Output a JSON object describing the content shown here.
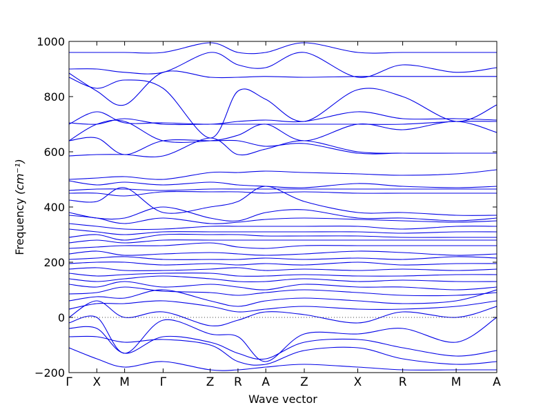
{
  "chart_data": {
    "type": "line",
    "title": "",
    "xlabel": "Wave vector",
    "ylabel": "Frequency",
    "ylabel_unit": "(cm⁻¹)",
    "ylim": [
      -200,
      1000
    ],
    "yticks": [
      -200,
      0,
      200,
      400,
      600,
      800,
      1000
    ],
    "ytick_labels": [
      "−200",
      "0",
      "200",
      "400",
      "600",
      "800",
      "1000"
    ],
    "zero_line": true,
    "grid": false,
    "legend": "none",
    "line_color": "#0000e6",
    "high_symmetry_points": [
      {
        "label": "Γ",
        "pos": 0.0
      },
      {
        "label": "X",
        "pos": 0.65
      },
      {
        "label": "M",
        "pos": 1.3
      },
      {
        "label": "Γ",
        "pos": 2.2
      },
      {
        "label": "Z",
        "pos": 3.3
      },
      {
        "label": "R",
        "pos": 3.95
      },
      {
        "label": "A",
        "pos": 4.6
      },
      {
        "label": "Z",
        "pos": 5.5
      },
      {
        "label": "X",
        "pos": 6.75
      },
      {
        "label": "R",
        "pos": 7.8
      },
      {
        "label": "M",
        "pos": 9.05
      },
      {
        "label": "A",
        "pos": 10.0
      }
    ],
    "x": [
      0,
      0.65,
      1.3,
      2.2,
      3.3,
      3.95,
      4.6,
      5.5,
      6.75,
      7.8,
      9.05,
      10.0
    ],
    "series": [
      {
        "values": [
          960,
          960,
          960,
          960,
          995,
          960,
          960,
          995,
          960,
          960,
          960,
          960
        ]
      },
      {
        "values": [
          900,
          900,
          888,
          888,
          960,
          915,
          905,
          960,
          870,
          915,
          888,
          905
        ]
      },
      {
        "values": [
          885,
          820,
          770,
          888,
          870,
          870,
          873,
          870,
          873,
          873,
          873,
          873
        ]
      },
      {
        "values": [
          870,
          830,
          860,
          830,
          650,
          820,
          790,
          710,
          825,
          800,
          710,
          770
        ]
      },
      {
        "values": [
          700,
          745,
          705,
          705,
          700,
          710,
          715,
          710,
          745,
          720,
          720,
          715
        ]
      },
      {
        "values": [
          705,
          700,
          720,
          700,
          700,
          700,
          700,
          700,
          700,
          700,
          710,
          710
        ]
      },
      {
        "values": [
          640,
          700,
          710,
          640,
          640,
          660,
          700,
          640,
          700,
          680,
          710,
          670
        ]
      },
      {
        "values": [
          640,
          650,
          590,
          640,
          640,
          640,
          620,
          630,
          595,
          595,
          595,
          595
        ]
      },
      {
        "values": [
          585,
          590,
          590,
          585,
          650,
          590,
          610,
          640,
          600,
          595,
          595,
          595
        ]
      },
      {
        "values": [
          500,
          505,
          510,
          500,
          525,
          525,
          530,
          525,
          520,
          515,
          520,
          535
        ]
      },
      {
        "values": [
          495,
          480,
          490,
          480,
          490,
          480,
          475,
          470,
          485,
          475,
          470,
          475
        ]
      },
      {
        "values": [
          460,
          465,
          465,
          460,
          465,
          465,
          465,
          465,
          465,
          465,
          465,
          465
        ]
      },
      {
        "values": [
          450,
          450,
          440,
          455,
          455,
          455,
          450,
          455,
          450,
          450,
          450,
          450
        ]
      },
      {
        "values": [
          425,
          420,
          470,
          380,
          400,
          420,
          475,
          420,
          380,
          380,
          370,
          370
        ]
      },
      {
        "values": [
          380,
          360,
          360,
          400,
          360,
          350,
          380,
          390,
          360,
          360,
          350,
          360
        ]
      },
      {
        "values": [
          370,
          360,
          340,
          360,
          340,
          345,
          355,
          360,
          355,
          350,
          345,
          350
        ]
      },
      {
        "values": [
          340,
          330,
          320,
          320,
          330,
          330,
          330,
          330,
          330,
          320,
          330,
          330
        ]
      },
      {
        "values": [
          320,
          310,
          300,
          310,
          310,
          310,
          310,
          310,
          310,
          305,
          310,
          310
        ]
      },
      {
        "values": [
          290,
          300,
          280,
          300,
          300,
          300,
          295,
          295,
          295,
          290,
          290,
          290
        ]
      },
      {
        "values": [
          270,
          280,
          270,
          280,
          280,
          280,
          280,
          280,
          280,
          280,
          280,
          280
        ]
      },
      {
        "values": [
          250,
          255,
          260,
          260,
          270,
          255,
          250,
          260,
          260,
          260,
          260,
          260
        ]
      },
      {
        "values": [
          230,
          240,
          225,
          230,
          235,
          230,
          225,
          230,
          240,
          235,
          225,
          230
        ]
      },
      {
        "values": [
          210,
          215,
          220,
          210,
          210,
          210,
          215,
          210,
          215,
          210,
          220,
          215
        ]
      },
      {
        "values": [
          195,
          200,
          200,
          190,
          195,
          190,
          195,
          190,
          200,
          190,
          195,
          195
        ]
      },
      {
        "values": [
          175,
          180,
          170,
          170,
          175,
          180,
          170,
          175,
          170,
          175,
          170,
          175
        ]
      },
      {
        "values": [
          160,
          150,
          155,
          160,
          160,
          150,
          150,
          155,
          150,
          150,
          155,
          155
        ]
      },
      {
        "values": [
          140,
          130,
          140,
          150,
          140,
          130,
          130,
          140,
          130,
          135,
          130,
          130
        ]
      },
      {
        "values": [
          120,
          110,
          130,
          110,
          120,
          110,
          100,
          120,
          110,
          110,
          100,
          110
        ]
      },
      {
        "values": [
          85,
          90,
          110,
          95,
          90,
          80,
          90,
          100,
          90,
          80,
          80,
          90
        ]
      },
      {
        "values": [
          60,
          75,
          70,
          100,
          60,
          40,
          60,
          70,
          60,
          50,
          60,
          100
        ]
      },
      {
        "values": [
          30,
          50,
          50,
          60,
          40,
          20,
          30,
          40,
          30,
          30,
          40,
          60
        ]
      },
      {
        "values": [
          0,
          60,
          0,
          20,
          -30,
          -10,
          20,
          10,
          -20,
          20,
          0,
          40
        ]
      },
      {
        "values": [
          -20,
          0,
          -130,
          -10,
          -60,
          -70,
          -160,
          -60,
          -60,
          -40,
          -90,
          0
        ]
      },
      {
        "values": [
          -40,
          -40,
          -130,
          -70,
          -90,
          -130,
          -150,
          -90,
          -80,
          -110,
          -140,
          -120
        ]
      },
      {
        "values": [
          -70,
          -70,
          -90,
          -80,
          -100,
          -160,
          -170,
          -120,
          -110,
          -150,
          -170,
          -160
        ]
      },
      {
        "values": [
          -110,
          -150,
          -180,
          -160,
          -190,
          -190,
          -180,
          -170,
          -180,
          -190,
          -190,
          -190
        ]
      }
    ]
  }
}
